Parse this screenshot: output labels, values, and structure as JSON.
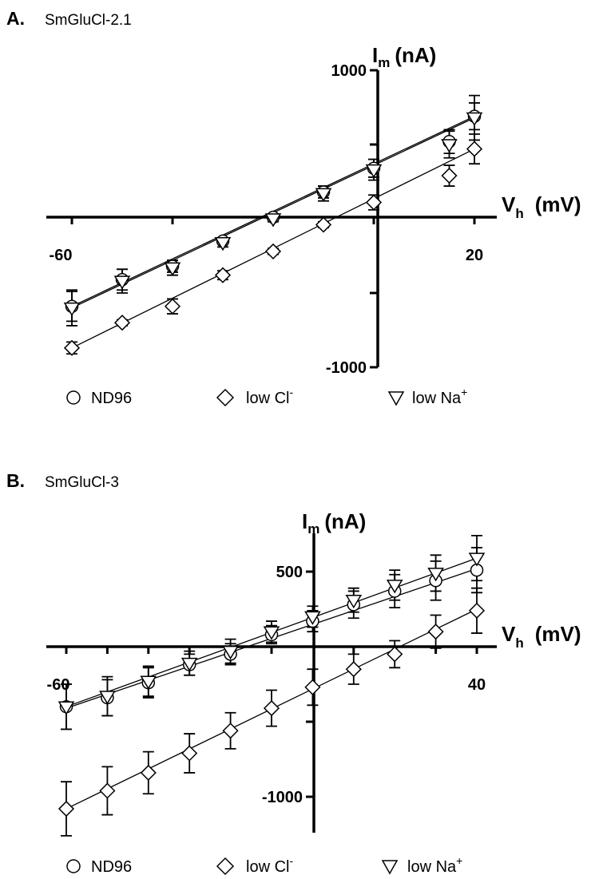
{
  "chart_data": [
    {
      "type": "scatter",
      "panel_label": "A.",
      "title": "SmGluCl-2.1",
      "ylabel_main": "I",
      "ylabel_sub": "m",
      "ylabel_unit": "(nA)",
      "xlabel_main": "V",
      "xlabel_sub": "h",
      "xlabel_unit": "(mV)",
      "xlim": [
        -63,
        25
      ],
      "ylim": [
        -1000,
        1000
      ],
      "x_tick_labels": [
        {
          "value": -60,
          "label": "-60"
        },
        {
          "value": 20,
          "label": "20"
        }
      ],
      "y_tick_labels": [
        {
          "value": 1000,
          "label": "1000"
        },
        {
          "value": -1000,
          "label": "-1000"
        }
      ],
      "x_minor_ticks": [
        -40,
        -20,
        0
      ],
      "y_minor_ticks": [
        500,
        -500
      ],
      "legend_position": "bottom",
      "series": [
        {
          "name": "ND96",
          "marker": "circle",
          "x": [
            -60,
            -50,
            -40,
            -30,
            -20,
            -10,
            0,
            15,
            20
          ],
          "y": [
            -590,
            -410,
            -320,
            -150,
            10,
            180,
            340,
            520,
            690
          ],
          "err": [
            100,
            70,
            40,
            20,
            20,
            40,
            60,
            80,
            90
          ],
          "fit": [
            [
              -60,
              -590
            ],
            [
              20,
              690
            ]
          ]
        },
        {
          "name": "low Cl",
          "name_sup": "-",
          "marker": "diamond",
          "x": [
            -60,
            -50,
            -40,
            -30,
            -20,
            -10,
            0,
            15,
            20
          ],
          "y": [
            -870,
            -700,
            -590,
            -380,
            -220,
            -40,
            110,
            290,
            470
          ],
          "err": [
            40,
            20,
            50,
            30,
            20,
            20,
            50,
            70,
            100
          ],
          "fit": [
            [
              -60,
              -870
            ],
            [
              20,
              470
            ]
          ]
        },
        {
          "name": "low Na",
          "name_sup": "+",
          "marker": "triangle",
          "x": [
            -60,
            -50,
            -40,
            -30,
            -20,
            -10,
            0,
            15,
            20
          ],
          "y": [
            -600,
            -420,
            -330,
            -160,
            0,
            170,
            330,
            500,
            680
          ],
          "err": [
            120,
            80,
            50,
            30,
            20,
            50,
            70,
            90,
            150
          ],
          "fit": [
            [
              -60,
              -600
            ],
            [
              20,
              680
            ]
          ]
        }
      ]
    },
    {
      "type": "scatter",
      "panel_label": "B.",
      "title": "SmGluCl-3",
      "ylabel_main": "I",
      "ylabel_sub": "m",
      "ylabel_unit": "(nA)",
      "xlabel_main": "V",
      "xlabel_sub": "h",
      "xlabel_unit": "(mV)",
      "xlim": [
        -63,
        45
      ],
      "ylim": [
        -1250,
        700
      ],
      "x_tick_labels": [
        {
          "value": -60,
          "label": "-60"
        },
        {
          "value": 40,
          "label": "40"
        }
      ],
      "y_tick_labels": [
        {
          "value": 500,
          "label": "500"
        },
        {
          "value": -1000,
          "label": "-1000"
        }
      ],
      "x_minor_ticks": [
        -50,
        -40,
        -30,
        -20,
        -10,
        10,
        20,
        30
      ],
      "y_minor_ticks": [
        -500
      ],
      "legend_position": "bottom",
      "series": [
        {
          "name": "ND96",
          "marker": "circle",
          "x": [
            -60,
            -50,
            -40,
            -30,
            -20,
            -10,
            0,
            10,
            20,
            30,
            40
          ],
          "y": [
            -400,
            -340,
            -240,
            -120,
            -50,
            80,
            170,
            280,
            370,
            440,
            510
          ],
          "err": [
            150,
            120,
            100,
            70,
            70,
            60,
            70,
            90,
            110,
            130,
            150
          ],
          "fit": [
            [
              -60,
              -410
            ],
            [
              40,
              520
            ]
          ]
        },
        {
          "name": "low Cl",
          "name_sup": "-",
          "marker": "diamond",
          "x": [
            -60,
            -50,
            -40,
            -30,
            -20,
            -10,
            0,
            10,
            20,
            30,
            40
          ],
          "y": [
            -1080,
            -960,
            -840,
            -710,
            -560,
            -410,
            -270,
            -150,
            -50,
            100,
            240
          ],
          "err": [
            180,
            160,
            140,
            130,
            120,
            120,
            120,
            100,
            90,
            110,
            150
          ],
          "fit": [
            [
              -60,
              -1080
            ],
            [
              40,
              250
            ]
          ]
        },
        {
          "name": "low Na",
          "name_sup": "+",
          "marker": "triangle",
          "x": [
            -60,
            -50,
            -40,
            -30,
            -20,
            -10,
            0,
            10,
            20,
            30,
            40
          ],
          "y": [
            -400,
            -330,
            -230,
            -110,
            -30,
            100,
            200,
            310,
            410,
            490,
            590
          ],
          "err": [
            150,
            130,
            100,
            80,
            80,
            70,
            70,
            80,
            100,
            120,
            150
          ],
          "fit": [
            [
              -60,
              -400
            ],
            [
              40,
              590
            ]
          ]
        }
      ]
    }
  ]
}
